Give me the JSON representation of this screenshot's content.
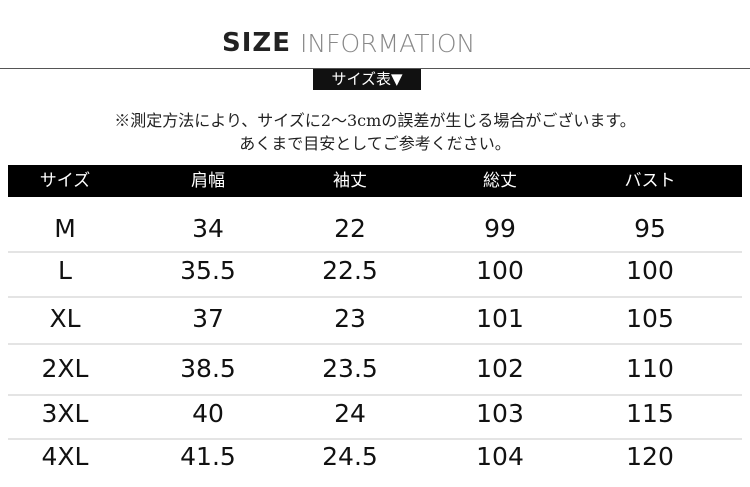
{
  "header": {
    "title": "SIZE",
    "subtitle": "INFORMATION",
    "label": "サイズ表▼"
  },
  "note": [
    "※測定方法により、サイズに2〜3cmの誤差が生じる場合がございます。",
    "あくまで目安としてご参考ください。"
  ],
  "table": {
    "columns": [
      "サイズ",
      "肩幅",
      "袖丈",
      "総丈",
      "バスト"
    ],
    "rows": [
      [
        "M",
        34,
        22,
        99,
        95
      ],
      [
        "L",
        35.5,
        22.5,
        100,
        100
      ],
      [
        "XL",
        37,
        23,
        101,
        105
      ],
      [
        "2XL",
        38.5,
        23.5,
        102,
        110
      ],
      [
        "3XL",
        40,
        24,
        103,
        115
      ],
      [
        "4XL",
        41.5,
        24.5,
        104,
        120
      ]
    ]
  }
}
